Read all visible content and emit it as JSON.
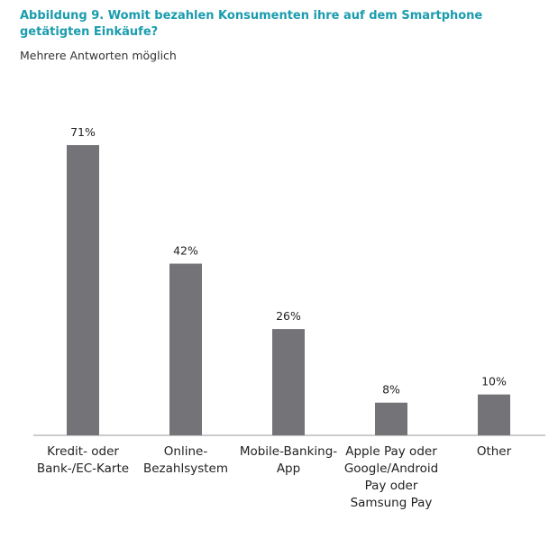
{
  "chart_data": {
    "type": "bar",
    "title": "Abbildung 9. Womit bezahlen Konsumenten ihre auf dem Smartphone getätigten Einkäufe?",
    "subtitle": "Mehrere Antworten möglich",
    "categories": [
      "Kredit- oder Bank-/EC-Karte",
      "Online-Bezahlsystem",
      "Mobile-Banking-App",
      "Apple Pay oder Google/Android Pay oder Samsung Pay",
      "Other"
    ],
    "values": [
      71,
      42,
      26,
      8,
      10
    ],
    "value_labels": [
      "71%",
      "42%",
      "26%",
      "8%",
      "10%"
    ],
    "color": "#747377"
  }
}
